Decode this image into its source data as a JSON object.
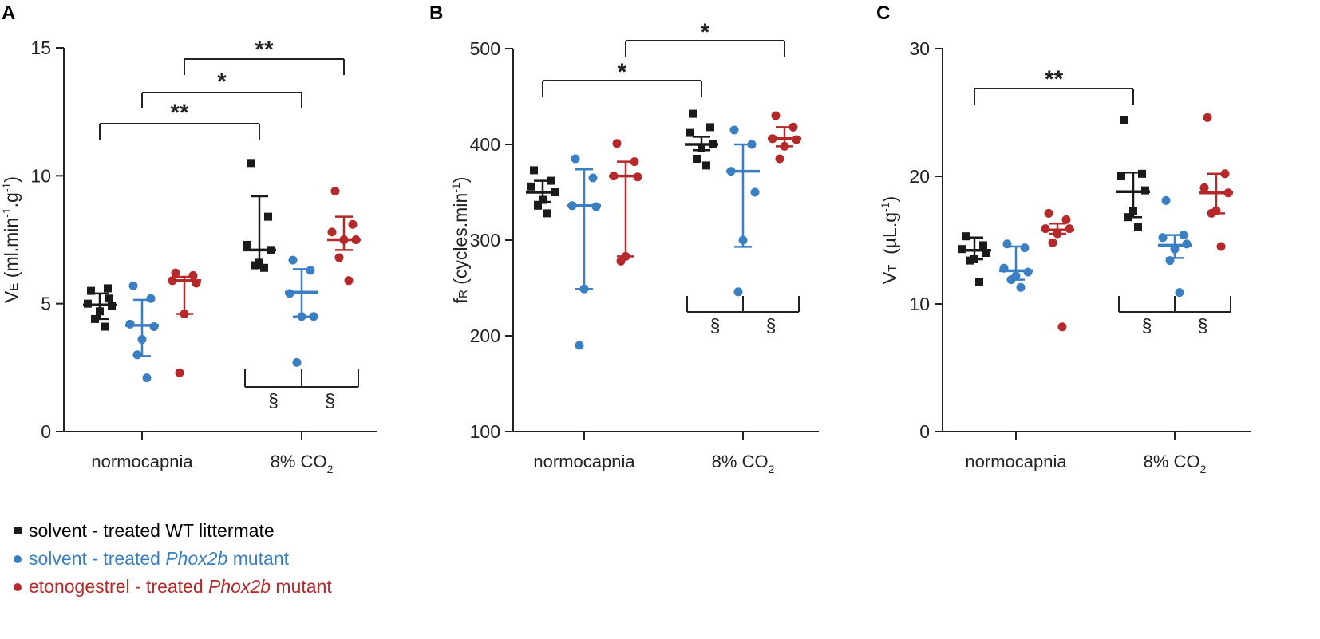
{
  "colors": {
    "wt": "#1a1a1a",
    "mutant": "#3a7fc4",
    "etono": "#b5292a",
    "axis": "#222222"
  },
  "legend": {
    "wt": "solvent - treated WT littermate",
    "mutant_pre": "solvent - treated ",
    "mutant_gene": "Phox2b",
    "mutant_post": " mutant",
    "etono_pre": "etonogestrel - treated ",
    "etono_gene": "Phox2b",
    "etono_post": " mutant"
  },
  "chart_data": [
    {
      "panel": "A",
      "type": "scatter",
      "ylabel_main": "V",
      "ylabel_sub": "E",
      "ylabel_unit": " (ml.min",
      "ylabel_exp1": "-1",
      "ylabel_mid": ".g",
      "ylabel_exp2": "-1",
      "ylabel_end": ")",
      "ylim": [
        0,
        15
      ],
      "yticks": [
        0,
        5,
        10,
        15
      ],
      "categories": [
        "normocapnia",
        "8% CO2"
      ],
      "cat_label_main": [
        "normocapnia",
        "8% CO"
      ],
      "cat_label_sub": [
        "",
        "2"
      ],
      "series": [
        {
          "name": "solvent - treated WT littermate",
          "group": "wt",
          "points": [
            [
              5.5,
              5.2,
              5.0,
              4.9,
              4.7,
              4.4,
              4.1,
              5.6
            ],
            [
              10.5,
              8.4,
              7.3,
              7.1,
              6.6,
              6.5,
              6.4
            ]
          ],
          "median": [
            4.95,
            7.1
          ],
          "err": [
            [
              4.4,
              5.4
            ],
            [
              6.4,
              9.2
            ]
          ]
        },
        {
          "name": "solvent - treated Phox2b mutant",
          "group": "mutant",
          "points": [
            [
              5.7,
              5.2,
              4.2,
              4.1,
              3.6,
              3.0,
              2.1
            ],
            [
              6.7,
              6.3,
              5.4,
              4.5,
              4.5,
              2.7
            ]
          ],
          "median": [
            4.15,
            5.45
          ],
          "err": [
            [
              2.95,
              5.15
            ],
            [
              4.5,
              6.35
            ]
          ]
        },
        {
          "name": "etonogestrel - treated Phox2b mutant",
          "group": "etono",
          "points": [
            [
              6.2,
              6.1,
              5.9,
              5.8,
              4.6,
              2.3
            ],
            [
              9.4,
              8.1,
              7.8,
              7.5,
              7.5,
              6.8,
              5.9
            ]
          ],
          "median": [
            5.9,
            7.5
          ],
          "err": [
            [
              4.6,
              6.05
            ],
            [
              7.1,
              8.4
            ]
          ]
        }
      ],
      "sig_brackets": [
        {
          "from": "normocapnia WT",
          "to": "8% CO2 WT",
          "label": "**"
        },
        {
          "from": "normocapnia mutant",
          "to": "8% CO2 mutant",
          "label": "*"
        },
        {
          "from": "normocapnia etonogestrel",
          "to": "8% CO2 etonogestrel",
          "label": "**"
        }
      ],
      "section_marks": [
        "§",
        "§"
      ]
    },
    {
      "panel": "B",
      "type": "scatter",
      "ylabel_main": "f",
      "ylabel_sub": "R",
      "ylabel_unit": " (cycles.min",
      "ylabel_exp1": "-1",
      "ylabel_mid": "",
      "ylabel_exp2": "",
      "ylabel_end": ")",
      "ylim": [
        100,
        500
      ],
      "yticks": [
        100,
        200,
        300,
        400,
        500
      ],
      "categories": [
        "normocapnia",
        "8% CO2"
      ],
      "cat_label_main": [
        "normocapnia",
        "8% CO"
      ],
      "cat_label_sub": [
        "",
        "2"
      ],
      "series": [
        {
          "name": "solvent - treated WT littermate",
          "group": "wt",
          "points": [
            [
              373,
              362,
              356,
              350,
              342,
              336,
              328
            ],
            [
              432,
              418,
              412,
              400,
              396,
              385,
              378
            ]
          ],
          "median": [
            350,
            400
          ],
          "err": [
            [
              340,
              362
            ],
            [
              394,
              408
            ]
          ]
        },
        {
          "name": "solvent - treated Phox2b mutant",
          "group": "mutant",
          "points": [
            [
              385,
              365,
              336,
              335,
              249,
              190
            ],
            [
              415,
              400,
              372,
              350,
              300,
              246
            ]
          ],
          "median": [
            336,
            372
          ],
          "err": [
            [
              249,
              374
            ],
            [
              293,
              400
            ]
          ]
        },
        {
          "name": "etonogestrel - treated Phox2b mutant",
          "group": "etono",
          "points": [
            [
              401,
              382,
              367,
              366,
              283,
              278
            ],
            [
              430,
              418,
              406,
              405,
              398,
              385
            ]
          ],
          "median": [
            367,
            406
          ],
          "err": [
            [
              283,
              382
            ],
            [
              398,
              418
            ]
          ]
        }
      ],
      "sig_brackets": [
        {
          "from": "normocapnia WT",
          "to": "8% CO2 WT",
          "label": "*"
        },
        {
          "from": "normocapnia etonogestrel",
          "to": "8% CO2 etonogestrel",
          "label": "*"
        }
      ],
      "section_marks": [
        "§",
        "§"
      ]
    },
    {
      "panel": "C",
      "type": "scatter",
      "ylabel_main": "V",
      "ylabel_sub": "T",
      "ylabel_unit": "  (µL.g",
      "ylabel_exp1": "-1",
      "ylabel_mid": "",
      "ylabel_exp2": "",
      "ylabel_end": ")",
      "ylim": [
        0,
        30
      ],
      "yticks": [
        0,
        10,
        20,
        30
      ],
      "categories": [
        "normocapnia",
        "8% CO2"
      ],
      "cat_label_main": [
        "normocapnia",
        "8% CO"
      ],
      "cat_label_sub": [
        "",
        "2"
      ],
      "series": [
        {
          "name": "solvent - treated WT littermate",
          "group": "wt",
          "points": [
            [
              15.3,
              14.6,
              14.3,
              14.0,
              13.5,
              13.4,
              11.7
            ],
            [
              24.4,
              20.2,
              20.0,
              18.9,
              17.3,
              16.8,
              16.0
            ]
          ],
          "median": [
            14.2,
            18.8
          ],
          "err": [
            [
              13.5,
              15.2
            ],
            [
              16.8,
              20.3
            ]
          ]
        },
        {
          "name": "solvent - treated Phox2b mutant",
          "group": "mutant",
          "points": [
            [
              14.7,
              14.4,
              12.8,
              12.5,
              12.2,
              11.9,
              11.3
            ],
            [
              18.1,
              15.4,
              15.2,
              14.7,
              14.3,
              13.4,
              10.9
            ]
          ],
          "median": [
            12.6,
            14.6
          ],
          "err": [
            [
              11.9,
              14.5
            ],
            [
              13.6,
              15.4
            ]
          ]
        },
        {
          "name": "etonogestrel - treated Phox2b mutant",
          "group": "etono",
          "points": [
            [
              17.1,
              16.6,
              15.9,
              15.9,
              15.5,
              14.8,
              8.2
            ],
            [
              24.6,
              20.2,
              19.1,
              18.7,
              17.3,
              17.1,
              14.5
            ]
          ],
          "median": [
            15.8,
            18.7
          ],
          "err": [
            [
              15.5,
              16.3
            ],
            [
              17.1,
              20.2
            ]
          ]
        }
      ],
      "sig_brackets": [
        {
          "from": "normocapnia WT",
          "to": "8% CO2 WT",
          "label": "**"
        }
      ],
      "section_marks": [
        "§",
        "§"
      ]
    }
  ]
}
